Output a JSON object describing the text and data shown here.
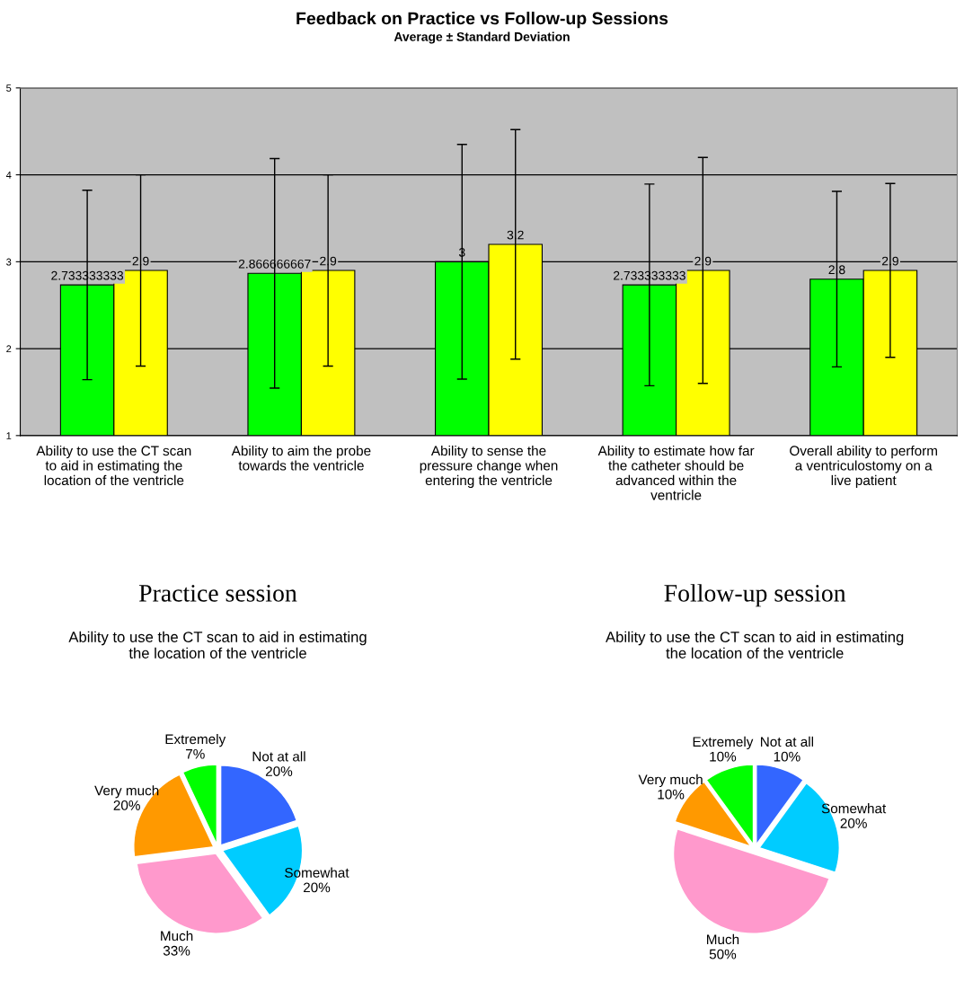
{
  "chart_data": [
    {
      "type": "bar",
      "title": "Feedback on Practice vs Follow-up Sessions",
      "subtitle": "Average ± Standard Deviation",
      "categories": [
        "Ability to use the CT scan\nto aid in estimating the\nlocation of the ventricle",
        "Ability to aim the probe\ntowards the ventricle",
        "Ability to sense the\npressure change when\nentering the ventricle",
        "Ability to estimate how far\nthe catheter should be\nadvanced within the\nventricle",
        "Overall ability to perform\na ventriculostomy on a\nlive patient"
      ],
      "series": [
        {
          "color": "#00ff00",
          "values": [
            2.733333333,
            2.866666667,
            3,
            2.733333333,
            2.8
          ],
          "errors": [
            1.09,
            1.32,
            1.35,
            1.16,
            1.01
          ]
        },
        {
          "color": "#ffff00",
          "values": [
            2.9,
            2.9,
            3.2,
            2.9,
            2.9
          ],
          "errors": [
            1.1,
            1.1,
            1.32,
            1.3,
            1.0
          ]
        }
      ],
      "ylim": [
        1,
        5
      ],
      "yticks": [
        1,
        2,
        3,
        4,
        5
      ],
      "grid": "y",
      "data_labels": true,
      "legend": false
    },
    {
      "type": "pie",
      "title": "Practice session",
      "subtitle": "Ability to use the CT scan to aid in estimating\nthe location of the ventricle",
      "categories": [
        "Not at all",
        "Somewhat",
        "Much",
        "Very much",
        "Extremely"
      ],
      "values": [
        20,
        20,
        33,
        20,
        7
      ],
      "value_labels": [
        "20%",
        "20%",
        "33%",
        "20%",
        "7%"
      ],
      "colors": [
        "#3366ff",
        "#00ccff",
        "#ff99cc",
        "#ff9900",
        "#00ff00"
      ]
    },
    {
      "type": "pie",
      "title": "Follow-up session",
      "subtitle": "Ability to use the CT scan to aid in estimating\nthe location of the ventricle",
      "categories": [
        "Not at all",
        "Somewhat",
        "Much",
        "Very much",
        "Extremely"
      ],
      "values": [
        10,
        20,
        50,
        10,
        10
      ],
      "value_labels": [
        "10%",
        "20%",
        "50%",
        "10%",
        "10%"
      ],
      "colors": [
        "#3366ff",
        "#00ccff",
        "#ff99cc",
        "#ff9900",
        "#00ff00"
      ]
    }
  ]
}
